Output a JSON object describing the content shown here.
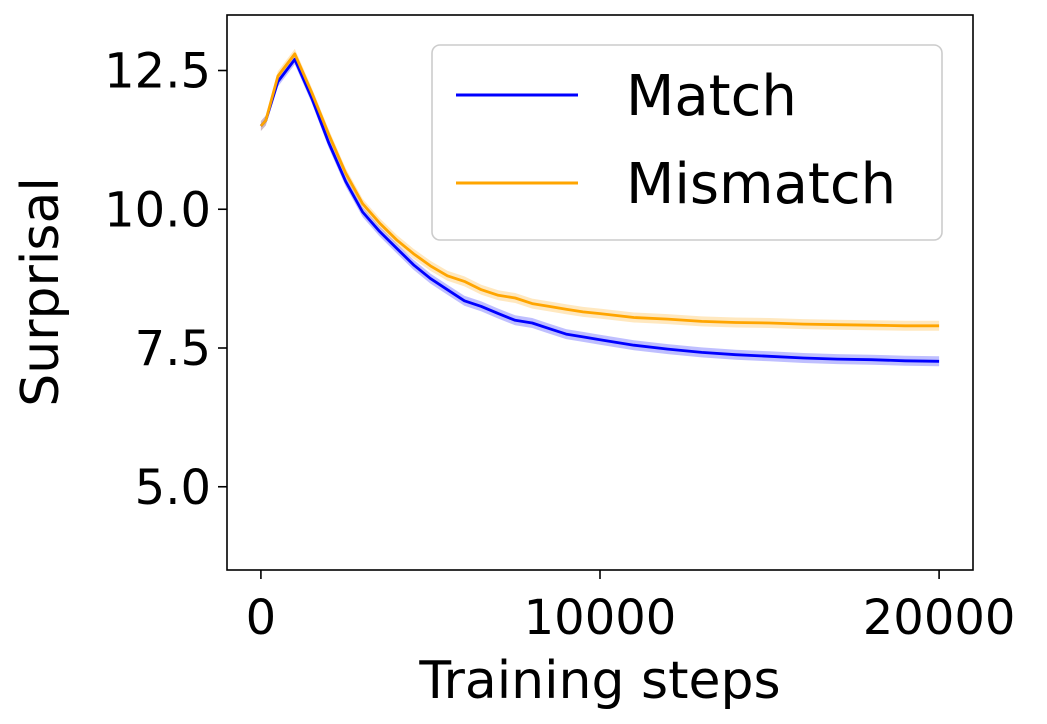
{
  "chart_data": {
    "type": "line",
    "title": "",
    "xlabel": "Training steps",
    "ylabel": "Surprisal",
    "xlim": [
      -1000,
      21000
    ],
    "ylim": [
      3.5,
      13.5
    ],
    "xticks": [
      0,
      10000,
      20000
    ],
    "xtick_labels": [
      "0",
      "10000",
      "20000"
    ],
    "yticks": [
      5.0,
      7.5,
      10.0,
      12.5
    ],
    "ytick_labels": [
      "5.0",
      "7.5",
      "10.0",
      "12.5"
    ],
    "grid": false,
    "legend_position": "top-right",
    "x": [
      0,
      143,
      500,
      1000,
      1500,
      2000,
      2500,
      3000,
      3500,
      4000,
      4500,
      5000,
      5500,
      6000,
      6500,
      7000,
      7500,
      8000,
      8500,
      9000,
      9500,
      10000,
      11000,
      12000,
      13000,
      14000,
      15000,
      16000,
      17000,
      18000,
      19000,
      20000
    ],
    "series": [
      {
        "name": "Match",
        "color": "#0000ff",
        "values": [
          11.5,
          11.6,
          12.3,
          12.7,
          12.0,
          11.2,
          10.5,
          9.95,
          9.6,
          9.3,
          9.0,
          8.75,
          8.55,
          8.35,
          8.25,
          8.12,
          8.0,
          7.95,
          7.85,
          7.75,
          7.7,
          7.65,
          7.55,
          7.48,
          7.42,
          7.38,
          7.35,
          7.32,
          7.3,
          7.29,
          7.27,
          7.26
        ]
      },
      {
        "name": "Mismatch",
        "color": "#ffa500",
        "values": [
          11.5,
          11.6,
          12.4,
          12.8,
          12.1,
          11.35,
          10.65,
          10.1,
          9.75,
          9.45,
          9.2,
          8.98,
          8.8,
          8.7,
          8.55,
          8.45,
          8.4,
          8.3,
          8.25,
          8.2,
          8.15,
          8.12,
          8.05,
          8.02,
          7.98,
          7.96,
          7.95,
          7.93,
          7.92,
          7.91,
          7.9,
          7.9
        ]
      }
    ]
  }
}
